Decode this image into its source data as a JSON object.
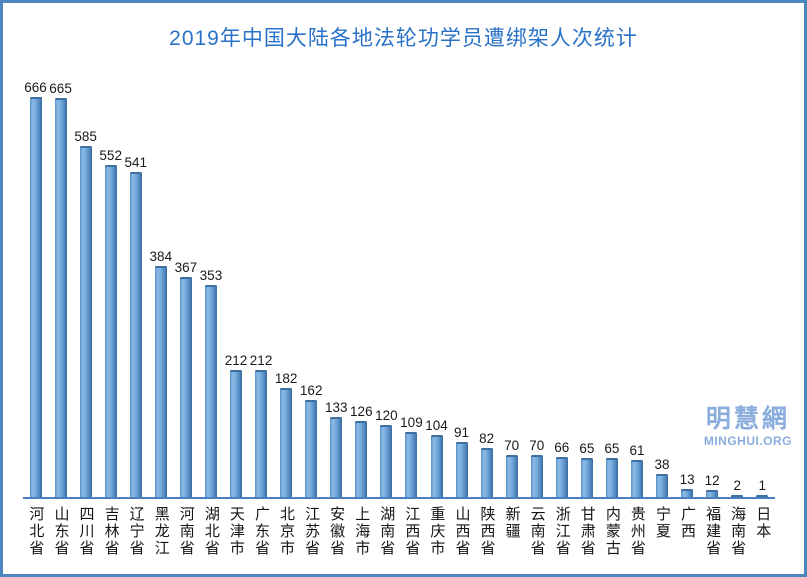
{
  "title": "2019年中国大陆各地法轮功学员遭绑架人次统计",
  "watermark": {
    "cn": "明慧網",
    "en": "MINGHUI.ORG"
  },
  "colors": {
    "frame_border": "#4b86be",
    "title_text": "#2a72c8",
    "axis_line": "#4a80c0",
    "bar_highlight": "#8cbae7",
    "bar_mid": "#619ad0",
    "bar_edge": "#3a6da0",
    "bar_cap": "#3e6f9f",
    "value_label_text": "#1a1a1a",
    "category_label_text": "#151515",
    "watermark_text": "#8badde",
    "background": "#ffffff"
  },
  "chart_data": {
    "type": "bar",
    "title": "2019年中国大陆各地法轮功学员遭绑架人次统计",
    "categories": [
      "河北省",
      "山东省",
      "四川省",
      "吉林省",
      "辽宁省",
      "黑龙江",
      "河南省",
      "湖北省",
      "天津市",
      "广东省",
      "北京市",
      "江苏省",
      "安徽省",
      "上海市",
      "湖南省",
      "江西省",
      "重庆市",
      "山西省",
      "陕西省",
      "新疆",
      "云南省",
      "浙江省",
      "甘肃省",
      "内蒙古",
      "贵州省",
      "宁夏",
      "广西",
      "福建省",
      "海南省",
      "日本"
    ],
    "values": [
      666,
      665,
      585,
      552,
      541,
      384,
      367,
      353,
      212,
      212,
      182,
      162,
      133,
      126,
      120,
      109,
      104,
      91,
      82,
      70,
      70,
      66,
      65,
      65,
      61,
      38,
      13,
      12,
      2,
      1
    ],
    "xlabel": "",
    "ylabel": "",
    "ylim": [
      0,
      700
    ],
    "grid": false,
    "legend": false,
    "value_labels": true,
    "category_label_orientation": "vertical",
    "bar_style": "cylinder-gradient-blue"
  }
}
